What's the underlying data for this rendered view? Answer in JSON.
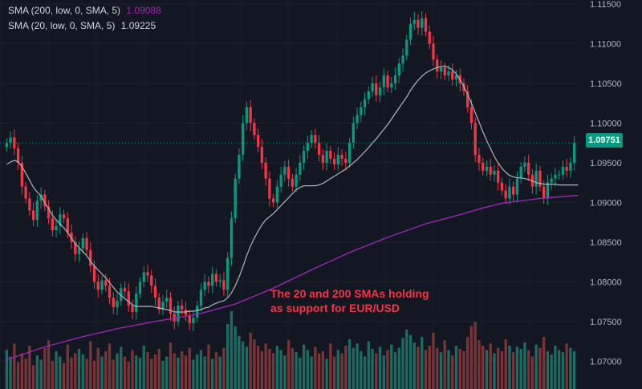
{
  "legend": {
    "sma200": {
      "label": "SMA (200, low, 0, SMA, 5)",
      "value": "1.09088",
      "color": "#9c27b0"
    },
    "sma20": {
      "label": "SMA (20, low, 0, SMA, 5)",
      "value": "1.09225",
      "color": "#b2b5be"
    }
  },
  "annotation": {
    "line1": "The 20 and  200 SMAs holding",
    "line2": "as support for EUR/USD"
  },
  "last_price": {
    "value": "1.09751",
    "tag_color": "#089981"
  },
  "chart_data": {
    "type": "candlestick",
    "instrument": "EUR/USD",
    "grid": "on",
    "yaxis": {
      "position": "right",
      "range": [
        1.0665,
        1.1155
      ],
      "ticks": [
        "1.11500",
        "1.11000",
        "1.10500",
        "1.10000",
        "1.09500",
        "1.09000",
        "1.08500",
        "1.08000",
        "1.07500",
        "1.07000"
      ]
    },
    "colors": {
      "up": "#089981",
      "down": "#f23645",
      "volume_up": "#1e6b62",
      "volume_down": "#7a3336"
    },
    "candles_close": [
      1.0975,
      1.0982,
      1.0968,
      1.095,
      1.092,
      1.0905,
      1.089,
      1.0878,
      1.0902,
      1.091,
      1.0895,
      1.088,
      1.0865,
      1.087,
      1.0885,
      1.088,
      1.0862,
      1.085,
      1.0835,
      1.0842,
      1.0855,
      1.084,
      1.082,
      1.08,
      1.079,
      1.0802,
      1.0795,
      1.078,
      1.0768,
      1.0776,
      1.0792,
      1.0788,
      1.077,
      1.0762,
      1.0785,
      1.08,
      1.0812,
      1.0808,
      1.0795,
      1.078,
      1.0765,
      1.0775,
      1.078,
      1.076,
      1.075,
      1.077,
      1.0765,
      1.0758,
      1.0748,
      1.0755,
      1.077,
      1.079,
      1.08,
      1.0795,
      1.081,
      1.08,
      1.0802,
      1.079,
      1.083,
      1.088,
      1.093,
      1.096,
      1.1,
      1.102,
      1.1,
      1.0985,
      1.097,
      1.095,
      1.093,
      1.0905,
      1.09,
      1.092,
      1.0935,
      1.0945,
      1.093,
      1.092,
      1.0935,
      1.095,
      1.0965,
      1.0975,
      1.0985,
      1.0975,
      1.096,
      1.095,
      1.0965,
      1.0955,
      1.0948,
      1.096,
      1.0955,
      1.095,
      1.0975,
      1.1,
      1.101,
      1.102,
      1.103,
      1.104,
      1.105,
      1.1035,
      1.1045,
      1.106,
      1.1045,
      1.105,
      1.106,
      1.1075,
      1.1085,
      1.1105,
      1.1125,
      1.113,
      1.112,
      1.1132,
      1.1115,
      1.11,
      1.108,
      1.1065,
      1.107,
      1.106,
      1.1065,
      1.1055,
      1.106,
      1.105,
      1.104,
      1.102,
      1.1,
      1.096,
      1.095,
      1.094,
      1.0945,
      1.0935,
      1.094,
      1.0925,
      1.0915,
      1.0905,
      1.092,
      1.091,
      1.093,
      1.0945,
      1.095,
      1.0935,
      1.092,
      1.094,
      1.092,
      1.0905,
      1.0925,
      1.093,
      1.0935,
      1.0935,
      1.0945,
      1.094,
      1.095,
      1.0975
    ],
    "volume_relative": [
      0.36,
      0.3,
      0.42,
      0.25,
      0.33,
      0.28,
      0.4,
      0.22,
      0.31,
      0.27,
      0.38,
      0.45,
      0.26,
      0.35,
      0.3,
      0.24,
      0.41,
      0.29,
      0.33,
      0.37,
      0.32,
      0.28,
      0.44,
      0.26,
      0.38,
      0.3,
      0.35,
      0.42,
      0.27,
      0.33,
      0.39,
      0.3,
      0.25,
      0.36,
      0.31,
      0.29,
      0.4,
      0.34,
      0.28,
      0.32,
      0.37,
      0.26,
      0.3,
      0.43,
      0.33,
      0.29,
      0.35,
      0.31,
      0.38,
      0.27,
      0.32,
      0.36,
      0.3,
      0.41,
      0.28,
      0.34,
      0.3,
      0.38,
      0.6,
      0.72,
      0.58,
      0.49,
      0.44,
      0.39,
      0.52,
      0.46,
      0.4,
      0.35,
      0.42,
      0.37,
      0.33,
      0.4,
      0.36,
      0.31,
      0.45,
      0.38,
      0.34,
      0.29,
      0.41,
      0.36,
      0.3,
      0.39,
      0.33,
      0.35,
      0.28,
      0.42,
      0.3,
      0.36,
      0.33,
      0.4,
      0.46,
      0.38,
      0.42,
      0.35,
      0.3,
      0.44,
      0.37,
      0.33,
      0.39,
      0.31,
      0.36,
      0.41,
      0.34,
      0.38,
      0.47,
      0.55,
      0.5,
      0.43,
      0.39,
      0.48,
      0.36,
      0.4,
      0.52,
      0.38,
      0.34,
      0.45,
      0.36,
      0.31,
      0.4,
      0.37,
      0.35,
      0.48,
      0.58,
      0.62,
      0.45,
      0.4,
      0.36,
      0.42,
      0.33,
      0.38,
      0.35,
      0.46,
      0.4,
      0.34,
      0.39,
      0.37,
      0.43,
      0.36,
      0.3,
      0.41,
      0.38,
      0.48,
      0.35,
      0.32,
      0.4,
      0.36,
      0.34,
      0.42,
      0.38,
      0.35
    ],
    "sma20_series": [
      1.0948,
      1.0951,
      1.0953,
      1.0951,
      1.0945,
      1.0937,
      1.0928,
      1.0919,
      1.0913,
      1.0908,
      1.09,
      1.0892,
      1.0884,
      1.0878,
      1.0873,
      1.0868,
      1.0862,
      1.0855,
      1.0848,
      1.0843,
      1.0838,
      1.0833,
      1.0826,
      1.082,
      1.0815,
      1.081,
      1.0805,
      1.0799,
      1.0793,
      1.0787,
      1.0783,
      1.0779,
      1.0775,
      1.0771,
      1.0769,
      1.0769,
      1.0769,
      1.0769,
      1.0769,
      1.0768,
      1.0767,
      1.0766,
      1.0765,
      1.0764,
      1.0762,
      1.0762,
      1.0762,
      1.0762,
      1.0763,
      1.0763,
      1.0764,
      1.0765,
      1.0767,
      1.0768,
      1.0771,
      1.0773,
      1.0775,
      1.0776,
      1.078,
      1.0786,
      1.0795,
      1.0806,
      1.0819,
      1.0833,
      1.0845,
      1.0855,
      1.0864,
      1.0872,
      1.0878,
      1.0882,
      1.0886,
      1.0891,
      1.0896,
      1.0901,
      1.0906,
      1.0911,
      1.0916,
      1.0919,
      1.0921,
      1.0921,
      1.0921,
      1.0921,
      1.0922,
      1.0924,
      1.0927,
      1.093,
      1.0933,
      1.0936,
      1.0939,
      1.0942,
      1.0946,
      1.095,
      1.0954,
      1.0959,
      1.0964,
      1.0969,
      1.0975,
      1.098,
      1.0986,
      1.0992,
      1.0998,
      1.1005,
      1.1012,
      1.1019,
      1.1026,
      1.1033,
      1.1041,
      1.1048,
      1.1054,
      1.1059,
      1.1063,
      1.1066,
      1.1068,
      1.107,
      1.1071,
      1.1072,
      1.107,
      1.1067,
      1.1062,
      1.1055,
      1.1046,
      1.1036,
      1.1025,
      1.1013,
      1.1001,
      1.0989,
      1.0978,
      1.0968,
      1.0958,
      1.095,
      1.0943,
      1.0938,
      1.0934,
      1.0932,
      1.0931,
      1.0931,
      1.093,
      1.0929,
      1.0927,
      1.0925,
      1.0924,
      1.0923,
      1.0923,
      1.0923,
      1.0923,
      1.0922,
      1.0922,
      1.0922,
      1.0922,
      1.0922,
      1.0922
    ],
    "sma200_series_points": [
      [
        0,
        1.0702
      ],
      [
        10,
        1.0718
      ],
      [
        20,
        1.0731
      ],
      [
        30,
        1.0742
      ],
      [
        40,
        1.0751
      ],
      [
        50,
        1.0759
      ],
      [
        60,
        1.0772
      ],
      [
        70,
        1.0792
      ],
      [
        80,
        1.0815
      ],
      [
        90,
        1.0837
      ],
      [
        100,
        1.0856
      ],
      [
        110,
        1.0873
      ],
      [
        120,
        1.0886
      ],
      [
        125,
        1.0893
      ],
      [
        130,
        1.0899
      ],
      [
        140,
        1.0905
      ],
      [
        150,
        1.0909
      ]
    ]
  }
}
